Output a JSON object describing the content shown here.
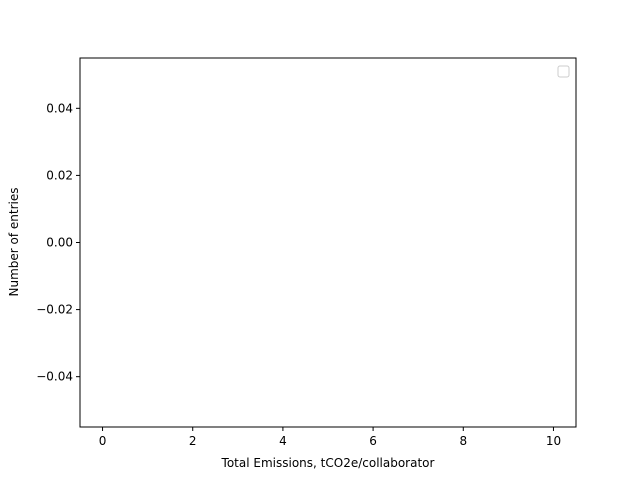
{
  "chart_data": {
    "type": "histogram",
    "title": "",
    "xlabel": "Total Emissions, tCO2e/collaborator",
    "ylabel": "Number of entries",
    "xlim": [
      -0.5,
      10.5
    ],
    "ylim": [
      -0.055,
      0.055
    ],
    "x_ticks": [
      "0",
      "2",
      "4",
      "6",
      "8",
      "10"
    ],
    "x_tick_values": [
      0,
      2,
      4,
      6,
      8,
      10
    ],
    "y_ticks": [
      "−0.04",
      "−0.02",
      "0.00",
      "0.02",
      "0.04"
    ],
    "y_tick_values": [
      -0.04,
      -0.02,
      0,
      0.02,
      0.04
    ],
    "series": [],
    "grid": false,
    "legend": {
      "placement": "upper-right",
      "entries": []
    },
    "colors": {
      "axes": "#000000",
      "background": "#ffffff"
    }
  }
}
